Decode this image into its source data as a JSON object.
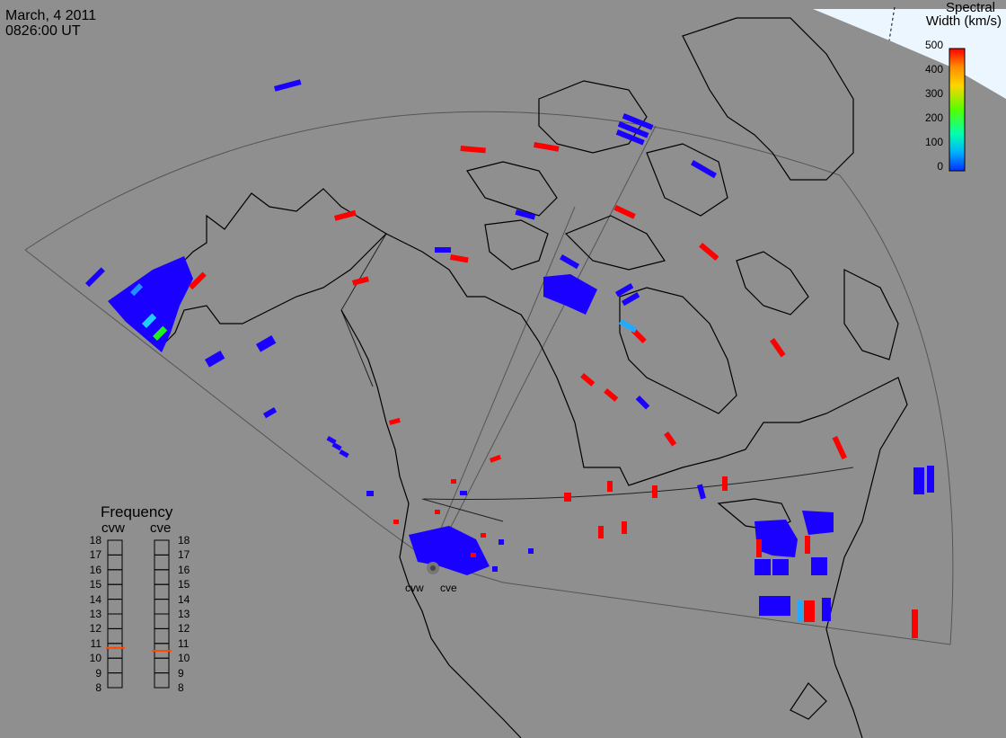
{
  "header": {
    "date": "March, 4 2011",
    "time": "0826:00 UT"
  },
  "colorbar": {
    "title_line1": "Spectral",
    "title_line2": "Width (km/s)",
    "ticks": [
      "500",
      "400",
      "300",
      "200",
      "100",
      "0"
    ],
    "range": [
      0,
      500
    ],
    "colors": [
      "#ff0000",
      "#ff8c00",
      "#ffd400",
      "#55ff00",
      "#00ffb0",
      "#00b0ff",
      "#0030ff"
    ]
  },
  "radars": [
    {
      "name": "cvw",
      "label": "cvw"
    },
    {
      "name": "cve",
      "label": "cve"
    }
  ],
  "frequency_panel": {
    "title": "Frequency",
    "columns": [
      "cvw",
      "cve"
    ],
    "levels": [
      "18",
      "17",
      "16",
      "15",
      "14",
      "13",
      "12",
      "11",
      "10",
      "9",
      "8"
    ],
    "cvw_value": 10.7,
    "cve_value": 10.5,
    "marker_color": "#ff4a00"
  },
  "map_colors": {
    "background": "#8f8f8f",
    "ice": "#ecf6fe",
    "coastline": "#000000",
    "fov_line": "#555555",
    "blue_scatter": "#1a00ff",
    "red_scatter": "#ff0000",
    "cyan_scatter": "#22ccff",
    "green_scatter": "#22ee22"
  }
}
